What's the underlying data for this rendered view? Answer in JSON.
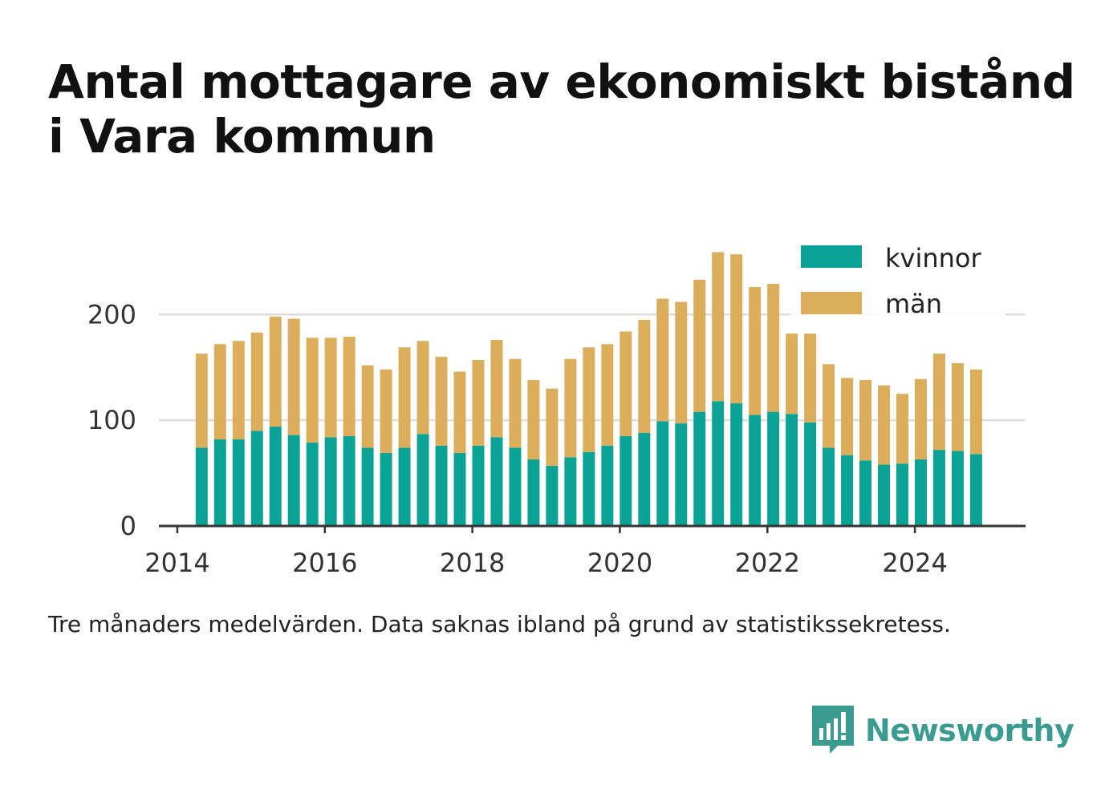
{
  "title": "Antal mottagare av ekonomiskt bistånd i Vara kommun",
  "footnote": "Tre månaders medelvärden. Data saknas ibland på grund av statistikssekretess.",
  "brand": {
    "name": "Newsworthy",
    "icon": "newsworthy-logo-icon",
    "color": "#3a9b91"
  },
  "colors": {
    "kvinnor": "#0aa396",
    "man": "#dcae5c",
    "grid": "#dddddd",
    "axis": "#333333"
  },
  "chart_data": {
    "type": "bar",
    "stacked": true,
    "title": "Antal mottagare av ekonomiskt bistånd i Vara kommun",
    "xlabel": "",
    "ylabel": "",
    "ylim": [
      0,
      270
    ],
    "yticks": [
      0,
      100,
      200
    ],
    "xlim": [
      2013.75,
      2025.5
    ],
    "xticks": [
      2014,
      2016,
      2018,
      2020,
      2022,
      2024
    ],
    "grid": true,
    "legend_position": "top-right",
    "x": [
      2014.33,
      2014.58,
      2014.83,
      2015.08,
      2015.33,
      2015.58,
      2015.83,
      2016.08,
      2016.33,
      2016.58,
      2016.83,
      2017.08,
      2017.33,
      2017.58,
      2017.83,
      2018.08,
      2018.33,
      2018.58,
      2018.83,
      2019.08,
      2019.33,
      2019.58,
      2019.83,
      2020.08,
      2020.33,
      2020.58,
      2020.83,
      2021.08,
      2021.33,
      2021.58,
      2021.83,
      2022.08,
      2022.33,
      2022.58,
      2022.83,
      2023.08,
      2023.33,
      2023.58,
      2023.83,
      2024.08,
      2024.33,
      2024.58,
      2024.83
    ],
    "series": [
      {
        "name": "kvinnor",
        "values": [
          74,
          82,
          82,
          90,
          94,
          86,
          79,
          84,
          85,
          74,
          69,
          74,
          87,
          76,
          69,
          76,
          84,
          74,
          63,
          57,
          65,
          70,
          76,
          85,
          88,
          99,
          97,
          108,
          118,
          116,
          105,
          108,
          106,
          98,
          74,
          67,
          62,
          58,
          59,
          63,
          72,
          71,
          68
        ]
      },
      {
        "name": "män",
        "values": [
          89,
          90,
          93,
          93,
          104,
          110,
          99,
          94,
          94,
          78,
          79,
          95,
          88,
          84,
          77,
          81,
          92,
          84,
          75,
          73,
          93,
          99,
          96,
          99,
          107,
          116,
          115,
          125,
          141,
          141,
          121,
          121,
          76,
          84,
          79,
          73,
          76,
          75,
          66,
          76,
          91,
          83,
          80
        ]
      }
    ]
  }
}
